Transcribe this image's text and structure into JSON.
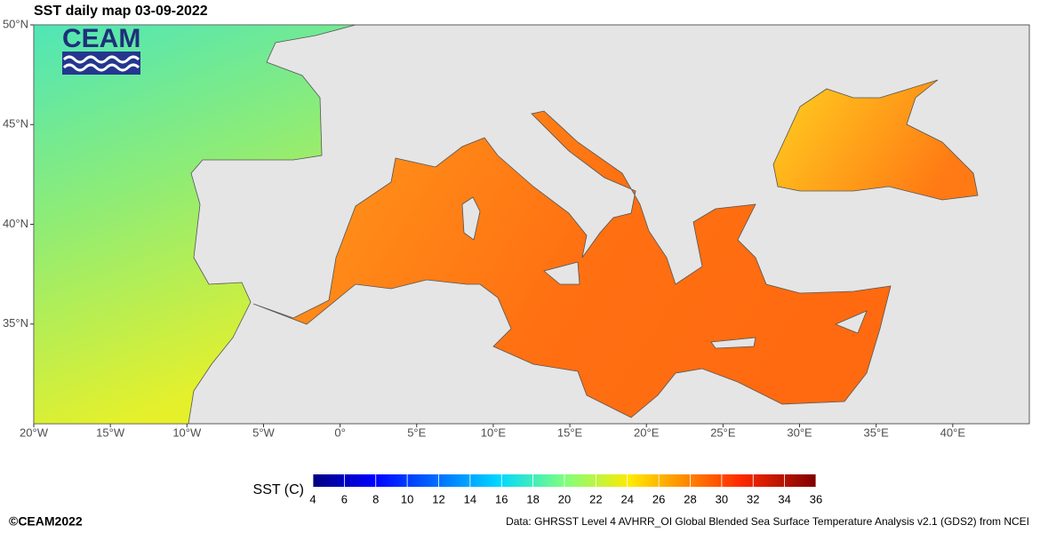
{
  "map": {
    "title": "SST daily map 03-09-2022",
    "logo": "CEAM",
    "xlim": [
      -20,
      45
    ],
    "ylim": [
      30,
      50
    ],
    "xticks": [
      {
        "value": -20,
        "label": "20°W"
      },
      {
        "value": -15,
        "label": "15°W"
      },
      {
        "value": -10,
        "label": "10°W"
      },
      {
        "value": -5,
        "label": "5°W"
      },
      {
        "value": 0,
        "label": "0°"
      },
      {
        "value": 5,
        "label": "5°E"
      },
      {
        "value": 10,
        "label": "10°E"
      },
      {
        "value": 15,
        "label": "15°E"
      },
      {
        "value": 20,
        "label": "20°E"
      },
      {
        "value": 25,
        "label": "25°E"
      },
      {
        "value": 30,
        "label": "30°E"
      },
      {
        "value": 35,
        "label": "35°E"
      },
      {
        "value": 40,
        "label": "40°E"
      }
    ],
    "yticks": [
      {
        "value": 50,
        "label": "50°N"
      },
      {
        "value": 45,
        "label": "45°N"
      },
      {
        "value": 40,
        "label": "40°N"
      },
      {
        "value": 35,
        "label": "35°N"
      }
    ],
    "colorbar": {
      "label": "SST (C)",
      "lim": [
        4,
        36
      ],
      "ticks": [
        4,
        6,
        8,
        10,
        12,
        14,
        16,
        18,
        20,
        22,
        24,
        26,
        28,
        30,
        32,
        34,
        36
      ]
    }
  },
  "footer": {
    "copyright": "©CEAM2022",
    "source": "Data: GHRSST Level 4 AVHRR_OI Global Blended Sea Surface Temperature Analysis v2.1 (GDS2) from NCEI"
  }
}
